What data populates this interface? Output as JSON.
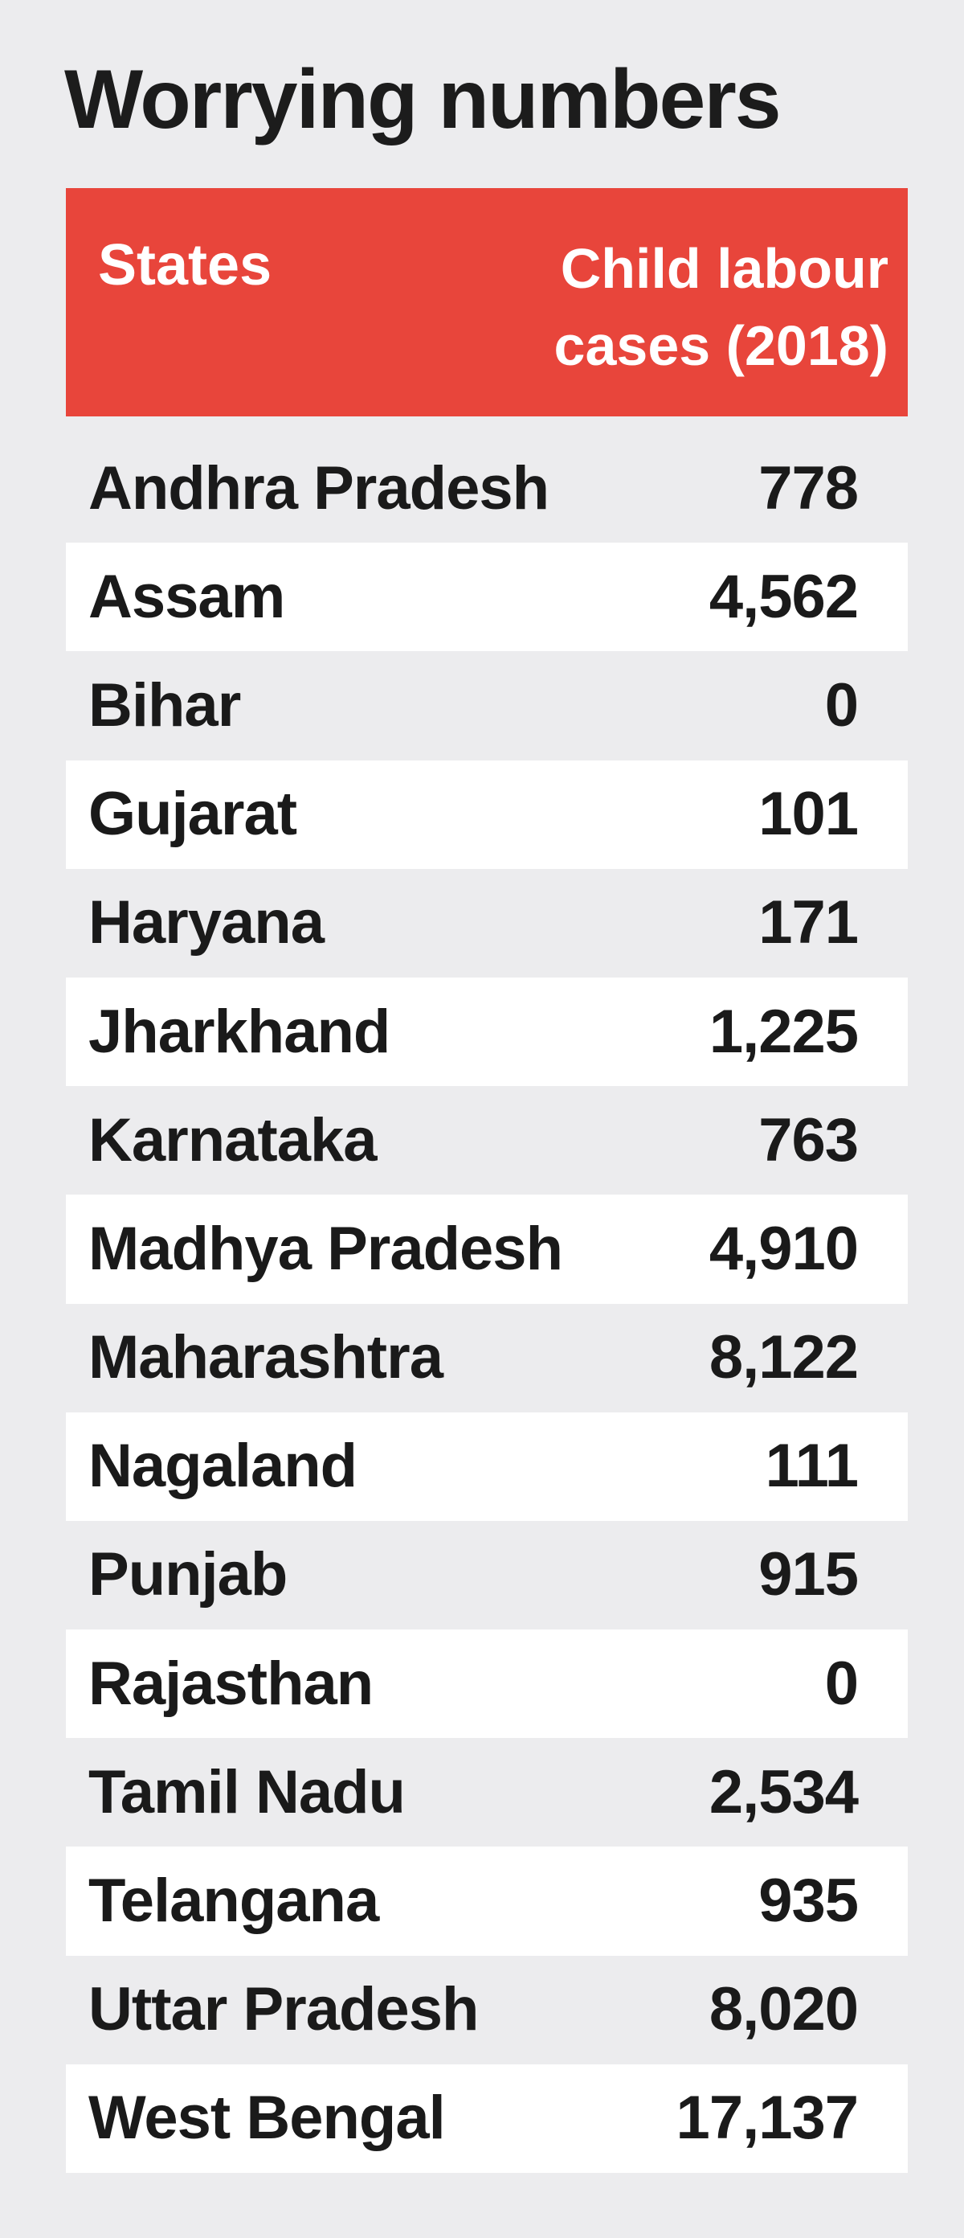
{
  "chart_data": {
    "type": "table",
    "title": "Worrying numbers",
    "columns": [
      "States",
      "Child labour\ncases (2018)"
    ],
    "rows": [
      {
        "state": "Andhra Pradesh",
        "value": "778"
      },
      {
        "state": "Assam",
        "value": "4,562"
      },
      {
        "state": "Bihar",
        "value": "0"
      },
      {
        "state": "Gujarat",
        "value": "101"
      },
      {
        "state": "Haryana",
        "value": "171"
      },
      {
        "state": "Jharkhand",
        "value": "1,225"
      },
      {
        "state": "Karnataka",
        "value": "763"
      },
      {
        "state": "Madhya Pradesh",
        "value": "4,910"
      },
      {
        "state": "Maharashtra",
        "value": "8,122"
      },
      {
        "state": "Nagaland",
        "value": "111"
      },
      {
        "state": "Punjab",
        "value": "915"
      },
      {
        "state": "Rajasthan",
        "value": "0"
      },
      {
        "state": "Tamil Nadu",
        "value": "2,534"
      },
      {
        "state": "Telangana",
        "value": "935"
      },
      {
        "state": "Uttar Pradesh",
        "value": "8,020"
      },
      {
        "state": "West Bengal",
        "value": "17,137"
      }
    ]
  },
  "colors": {
    "header_bg": "#e8453b",
    "header_text": "#ffffff",
    "page_bg": "#ececee",
    "stripe_bg": "#ffffff",
    "text": "#1a1a1a"
  }
}
